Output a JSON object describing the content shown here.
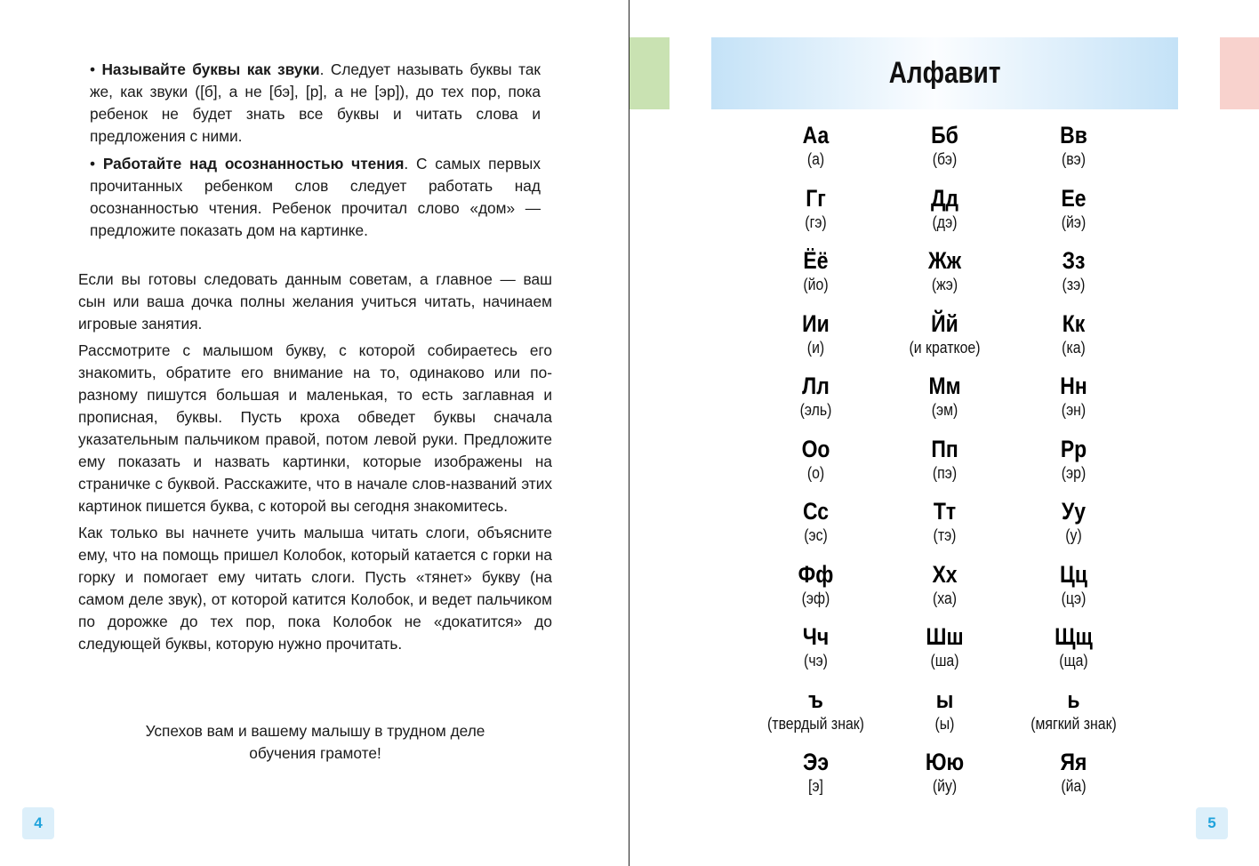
{
  "left_page": {
    "bullets": [
      {
        "bold": "Называйте буквы как звуки",
        "text": ". Следует называть буквы так же, как звуки ([б], а не [бэ], [р], а не [эр]), до тех пор, пока ребенок не будет знать все буквы и читать слова и предложения с ними."
      },
      {
        "bold": "Работайте над осознанностью чтения",
        "text": ". С самых первых прочитанных ребенком слов следует работать над осознанностью чтения. Ребенок прочитал слово «дом» — предложите показать дом на картинке."
      }
    ],
    "paragraphs": [
      "Если вы готовы следовать данным советам, а главное — ваш сын или ваша дочка полны желания учиться читать, начинаем игровые занятия.",
      "Рассмотрите с малышом букву, с которой собираетесь его знакомить, обратите его внимание на то, одинаково или по-разному пишутся большая и маленькая, то есть заглавная и прописная, буквы. Пусть кроха обведет буквы сначала указательным пальчиком правой, потом левой руки. Предложите ему показать и назвать картинки, которые изображены на страничке с буквой. Расскажите, что в начале слов-названий этих картинок пишется буква, с которой вы сегодня знакомитесь.",
      "Как только вы начнете учить малыша читать слоги, объясните ему, что на помощь пришел Колобок, который катается с горки на горку и помогает ему читать слоги. Пусть «тянет» букву (на самом деле звук), от которой катится Колобок, и ведет пальчиком по дорожке до тех пор, пока Колобок не «докатится» до следующей буквы, которую нужно прочитать."
    ],
    "closing_line1": "Успехов вам и вашему малышу в трудном деле",
    "closing_line2": "обучения грамоте!",
    "page_number": "4"
  },
  "right_page": {
    "title": "Алфавит",
    "page_number": "5",
    "letters": [
      {
        "letter": "Аа",
        "name": "(а)"
      },
      {
        "letter": "Бб",
        "name": "(бэ)"
      },
      {
        "letter": "Вв",
        "name": "(вэ)"
      },
      {
        "letter": "Гг",
        "name": "(гэ)"
      },
      {
        "letter": "Дд",
        "name": "(дэ)"
      },
      {
        "letter": "Ее",
        "name": "(йэ)"
      },
      {
        "letter": "Ёё",
        "name": "(йо)"
      },
      {
        "letter": "Жж",
        "name": "(жэ)"
      },
      {
        "letter": "Зз",
        "name": "(зэ)"
      },
      {
        "letter": "Ии",
        "name": "(и)"
      },
      {
        "letter": "Йй",
        "name": "(и краткое)"
      },
      {
        "letter": "Кк",
        "name": "(ка)"
      },
      {
        "letter": "Лл",
        "name": "(эль)"
      },
      {
        "letter": "Мм",
        "name": "(эм)"
      },
      {
        "letter": "Нн",
        "name": "(эн)"
      },
      {
        "letter": "Оо",
        "name": "(о)"
      },
      {
        "letter": "Пп",
        "name": "(пэ)"
      },
      {
        "letter": "Рр",
        "name": "(эр)"
      },
      {
        "letter": "Сс",
        "name": "(эс)"
      },
      {
        "letter": "Тт",
        "name": "(тэ)"
      },
      {
        "letter": "Уу",
        "name": "(у)"
      },
      {
        "letter": "Фф",
        "name": "(эф)"
      },
      {
        "letter": "Хх",
        "name": "(ха)"
      },
      {
        "letter": "Цц",
        "name": "(цэ)"
      },
      {
        "letter": "Чч",
        "name": "(чэ)"
      },
      {
        "letter": "Шш",
        "name": "(ша)"
      },
      {
        "letter": "Щщ",
        "name": "(ща)"
      },
      {
        "letter": "ъ",
        "name": "(твердый знак)"
      },
      {
        "letter": "ы",
        "name": "(ы)"
      },
      {
        "letter": "ь",
        "name": "(мягкий знак)"
      },
      {
        "letter": "Ээ",
        "name": "[э]"
      },
      {
        "letter": "Юю",
        "name": "(йу)"
      },
      {
        "letter": "Яя",
        "name": "(йа)"
      }
    ]
  },
  "colors": {
    "banner": "#c4e2f7",
    "green_tab": "#c9e2b2",
    "pink_tab": "#f8d2cd",
    "page_number": "#1fa3dc"
  }
}
